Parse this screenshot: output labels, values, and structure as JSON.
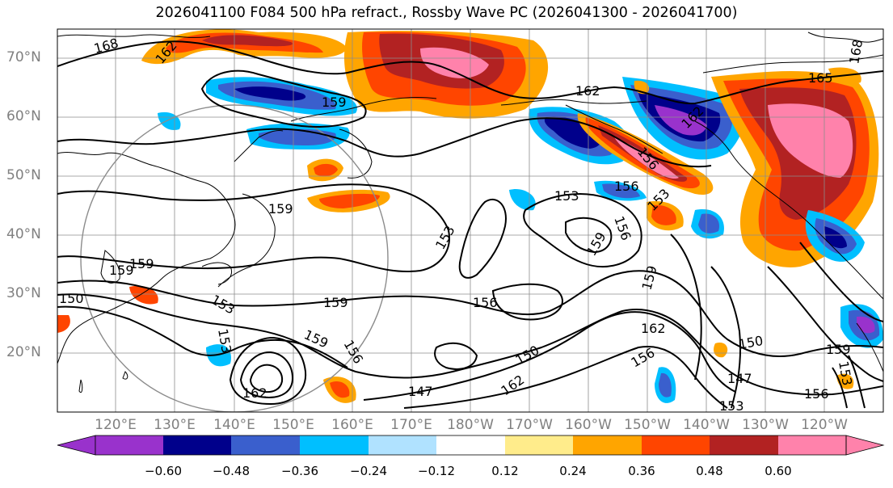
{
  "title": "2026041100 F084 500 hPa refract., Rossby Wave PC (2026041300 - 2026041700)",
  "lat_labels": [
    "70°N",
    "60°N",
    "50°N",
    "40°N",
    "30°N",
    "20°N"
  ],
  "lon_labels": [
    "120°E",
    "130°E",
    "140°E",
    "150°E",
    "160°E",
    "170°E",
    "180°W",
    "170°W",
    "160°W",
    "150°W",
    "140°W",
    "130°W",
    "120°W"
  ],
  "colorbar": {
    "colors": [
      "#9932cc",
      "#00008b",
      "#3a5fcd",
      "#00bfff",
      "#b0e2ff",
      "#ffffff",
      "#ffec8b",
      "#ffa500",
      "#ff4500",
      "#b22222",
      "#ff82ab"
    ],
    "labels": [
      "−0.60",
      "−0.48",
      "−0.36",
      "−0.24",
      "−0.12",
      "0.12",
      "0.24",
      "0.36",
      "0.48",
      "0.60"
    ]
  },
  "contour_labels": [
    "168",
    "162",
    "159",
    "162",
    "165",
    "168",
    "162",
    "156",
    "159",
    "153",
    "153",
    "156",
    "159",
    "159",
    "156",
    "156",
    "159",
    "153",
    "150",
    "159",
    "159",
    "162",
    "162",
    "147",
    "162",
    "156",
    "150",
    "147",
    "153",
    "150",
    "156",
    "153",
    "159",
    "156",
    "153",
    "159",
    "153"
  ]
}
